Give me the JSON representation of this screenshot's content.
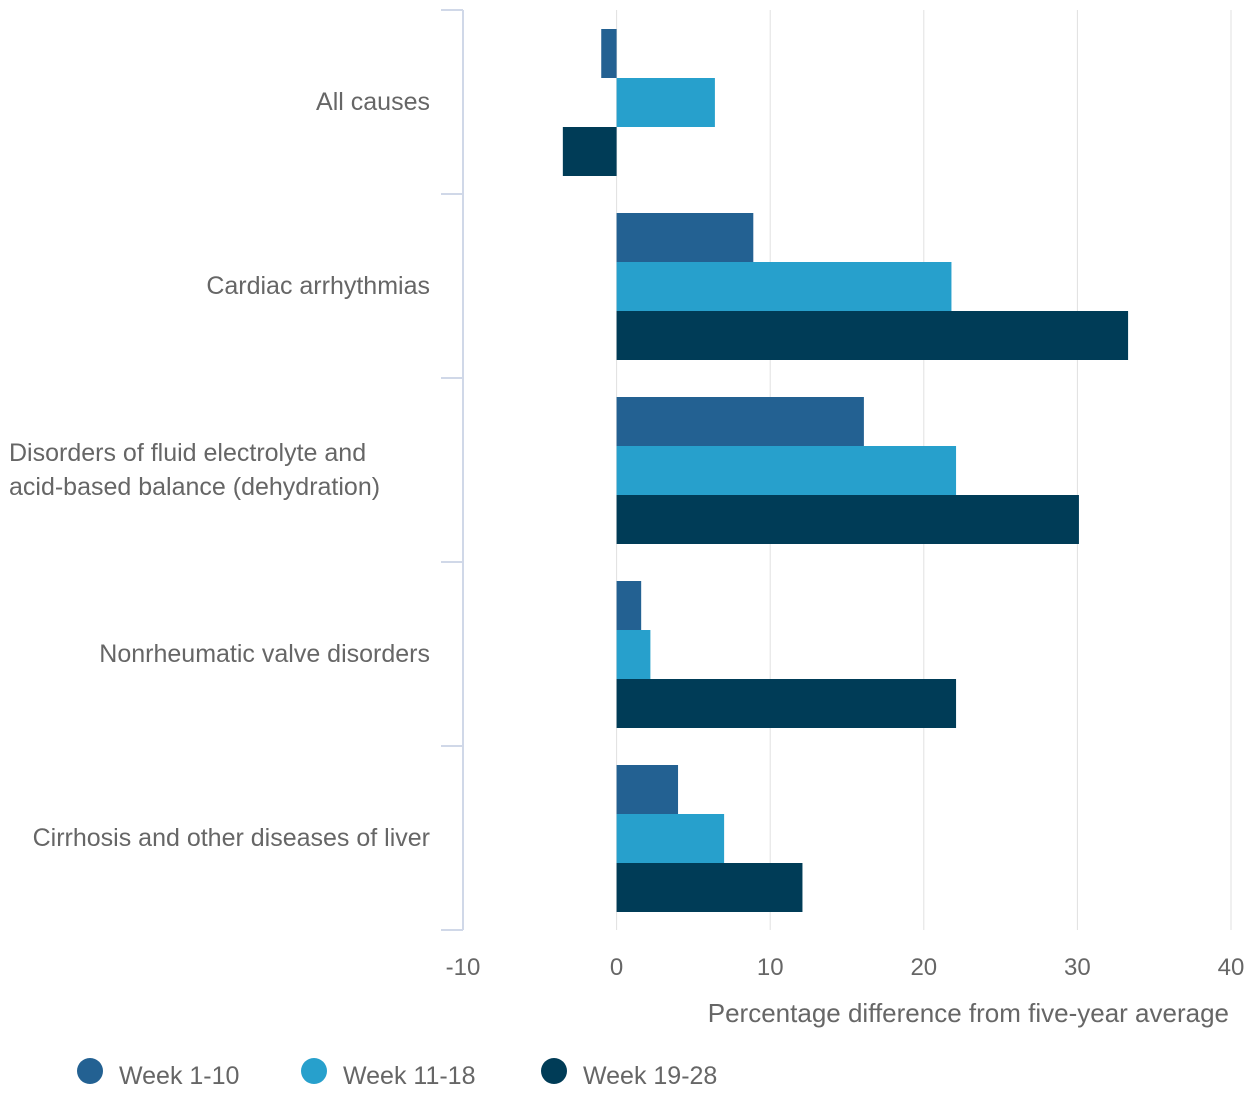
{
  "chart_data": {
    "type": "bar",
    "orientation": "horizontal",
    "xlabel": "Percentage difference from five-year average",
    "xlim": [
      -10,
      40
    ],
    "xticks": [
      -10,
      0,
      10,
      20,
      30,
      40
    ],
    "grid": true,
    "legend_position": "bottom-left",
    "categories": [
      [
        "All causes"
      ],
      [
        "Cardiac arrhythmias"
      ],
      [
        "Disorders of fluid electrolyte and",
        "acid-based balance (dehydration)"
      ],
      [
        "Nonrheumatic valve disorders"
      ],
      [
        "Cirrhosis and other diseases of liver"
      ]
    ],
    "series": [
      {
        "name": "Week 1-10",
        "color": "#236192",
        "values": [
          -1.0,
          8.9,
          16.1,
          1.6,
          4.0
        ]
      },
      {
        "name": "Week 11-18",
        "color": "#27a0cc",
        "values": [
          6.4,
          21.8,
          22.1,
          2.2,
          7.0
        ]
      },
      {
        "name": "Week 19-28",
        "color": "#003c57",
        "values": [
          -3.5,
          33.3,
          30.1,
          22.1,
          12.1
        ]
      }
    ],
    "colors": {
      "grid": "#e0e0e0",
      "axis": "#d0d8e8",
      "text": "#666666"
    }
  }
}
